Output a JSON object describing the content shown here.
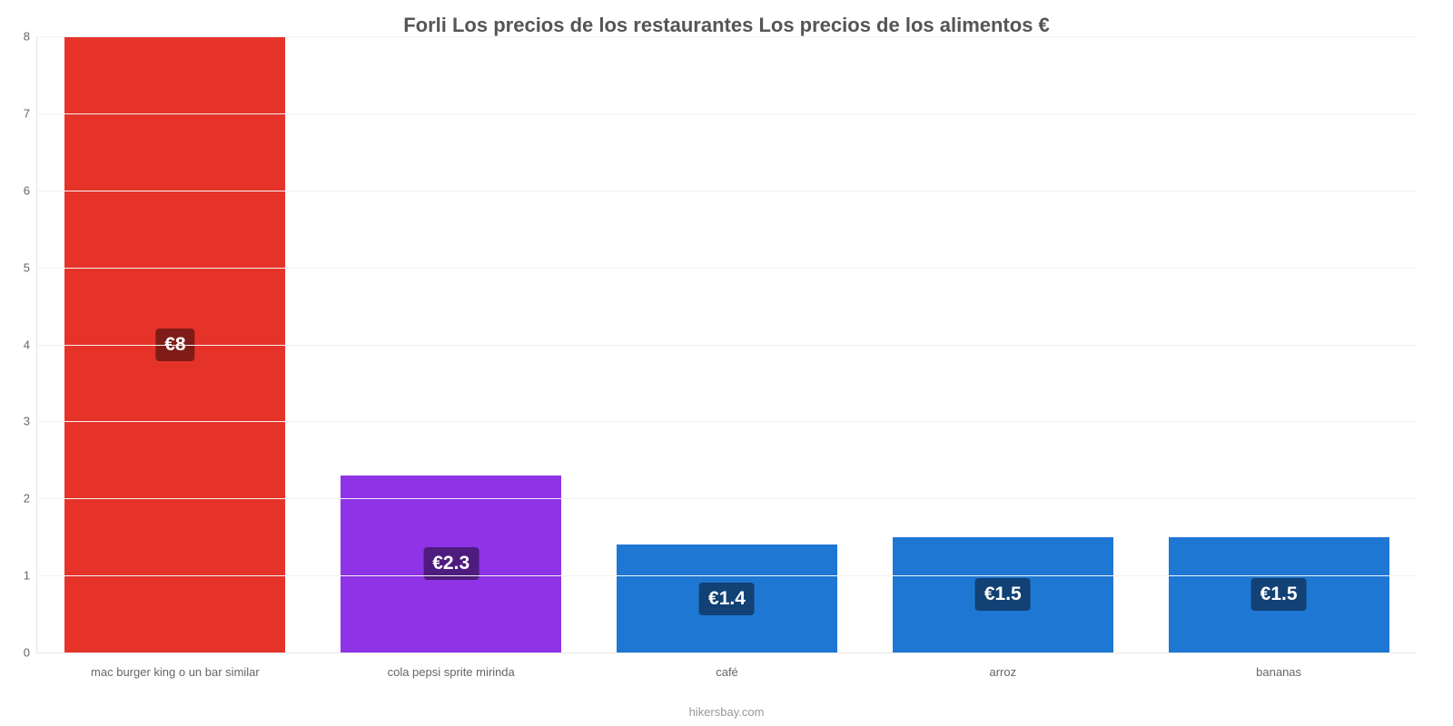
{
  "chart": {
    "type": "bar",
    "title": "Forli Los precios de los restaurantes Los precios de los alimentos €",
    "title_fontsize": 22,
    "title_color": "#555555",
    "categories": [
      "mac burger king o un bar similar",
      "cola pepsi sprite mirinda",
      "café",
      "arroz",
      "bananas"
    ],
    "values": [
      8,
      2.3,
      1.4,
      1.5,
      1.5
    ],
    "value_labels": [
      "€8",
      "€2.3",
      "€1.4",
      "€1.5",
      "€1.5"
    ],
    "bar_colors": [
      "#e6332a",
      "#8e33e6",
      "#1f77d4",
      "#1f77d4",
      "#1f77d4"
    ],
    "ylim": [
      0,
      8
    ],
    "ytick_step": 1,
    "yticks": [
      0,
      1,
      2,
      3,
      4,
      5,
      6,
      7,
      8
    ],
    "axis_label_color": "#666666",
    "axis_label_fontsize": 13,
    "grid_color": "#f2f2f2",
    "border_color": "#e6e6e6",
    "background_color": "#ffffff",
    "bar_width_pct": 16,
    "value_label_fontsize": 21,
    "value_label_color": "#ffffff",
    "credit": "hikersbay.com",
    "credit_color": "#999999",
    "credit_fontsize": 13
  }
}
